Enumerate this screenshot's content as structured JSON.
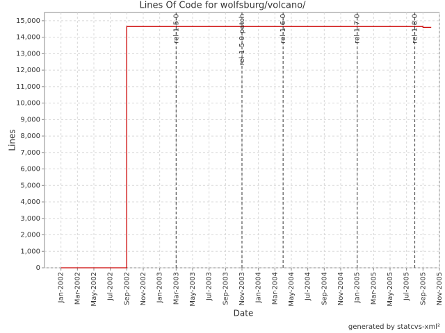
{
  "chart_data": {
    "type": "line",
    "title": "Lines Of Code for wolfsburg/volcano/",
    "x_label": "Date",
    "y_label": "Lines",
    "credit": "generated by statcvs-xml²",
    "x": [
      "2002-01",
      "2002-09",
      "2002-09",
      "2005-09",
      "2005-09",
      "2005-10"
    ],
    "values": [
      0,
      0,
      14650,
      14650,
      14600,
      14600
    ],
    "color": "#cc0000",
    "xlim": [
      "2001-11",
      "2005-11"
    ],
    "xticks": [
      {
        "value": "2002-01",
        "label": "Jan-2002"
      },
      {
        "value": "2002-03",
        "label": "Mar-2002"
      },
      {
        "value": "2002-05",
        "label": "May-2002"
      },
      {
        "value": "2002-07",
        "label": "Jul-2002"
      },
      {
        "value": "2002-09",
        "label": "Sep-2002"
      },
      {
        "value": "2002-11",
        "label": "Nov-2002"
      },
      {
        "value": "2003-01",
        "label": "Jan-2003"
      },
      {
        "value": "2003-03",
        "label": "Mar-2003"
      },
      {
        "value": "2003-05",
        "label": "May-2003"
      },
      {
        "value": "2003-07",
        "label": "Jul-2003"
      },
      {
        "value": "2003-09",
        "label": "Sep-2003"
      },
      {
        "value": "2003-11",
        "label": "Nov-2003"
      },
      {
        "value": "2004-01",
        "label": "Jan-2004"
      },
      {
        "value": "2004-03",
        "label": "Mar-2004"
      },
      {
        "value": "2004-05",
        "label": "May-2004"
      },
      {
        "value": "2004-07",
        "label": "Jul-2004"
      },
      {
        "value": "2004-09",
        "label": "Sep-2004"
      },
      {
        "value": "2004-11",
        "label": "Nov-2004"
      },
      {
        "value": "2005-01",
        "label": "Jan-2005"
      },
      {
        "value": "2005-03",
        "label": "Mar-2005"
      },
      {
        "value": "2005-05",
        "label": "May-2005"
      },
      {
        "value": "2005-07",
        "label": "Jul-2005"
      },
      {
        "value": "2005-09",
        "label": "Sep-2005"
      },
      {
        "value": "2005-11",
        "label": "Nov-2005"
      }
    ],
    "ylim": [
      0,
      15500
    ],
    "yticks": [
      0,
      {
        "value": 1000,
        "label": "1,000"
      },
      {
        "value": 2000,
        "label": "2,000"
      },
      {
        "value": 3000,
        "label": "3,000"
      },
      {
        "value": 4000,
        "label": "4,000"
      },
      {
        "value": 5000,
        "label": "5,000"
      },
      {
        "value": 6000,
        "label": "6,000"
      },
      {
        "value": 7000,
        "label": "7,000"
      },
      {
        "value": 8000,
        "label": "8,000"
      },
      {
        "value": 9000,
        "label": "9,000"
      },
      {
        "value": 10000,
        "label": "10,000"
      },
      {
        "value": 11000,
        "label": "11,000"
      },
      {
        "value": 12000,
        "label": "12,000"
      },
      {
        "value": 13000,
        "label": "13,000"
      },
      {
        "value": 14000,
        "label": "14,000"
      },
      {
        "value": 15000,
        "label": "15,000"
      }
    ],
    "grid": true,
    "markers": [
      {
        "x": "2003-03",
        "label": "rel-1-5-0"
      },
      {
        "x": "2003-11",
        "label": "rel-1-5-0-patch"
      },
      {
        "x": "2004-04",
        "label": "rel-1-6-0"
      },
      {
        "x": "2005-01",
        "label": "rel-1-7-0"
      },
      {
        "x": "2005-08",
        "label": "rel-1-8-0"
      }
    ]
  }
}
